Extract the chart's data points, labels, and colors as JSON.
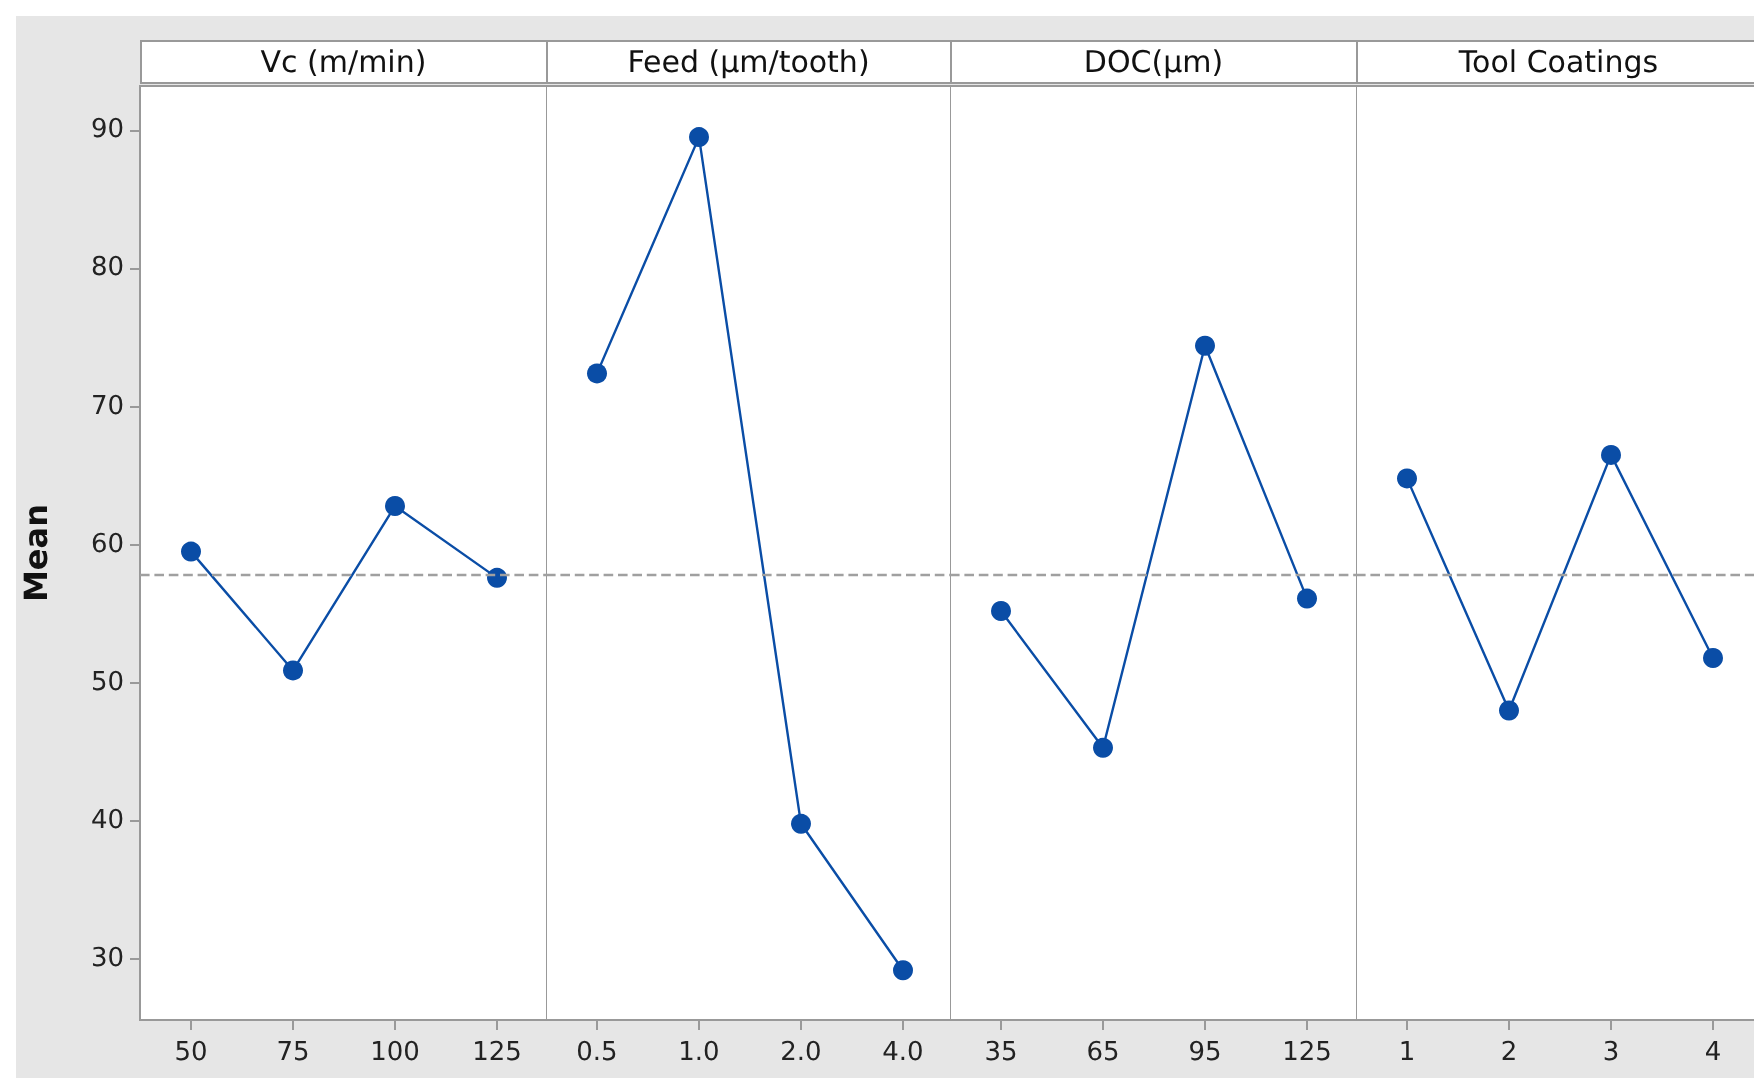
{
  "chart_data": [
    {
      "type": "line",
      "title": "Vc (m/min)",
      "ylabel": "Mean",
      "categories": [
        "50",
        "75",
        "100",
        "125"
      ],
      "values": [
        59.5,
        50.9,
        62.8,
        57.6
      ],
      "color": "#0a4da6",
      "marker": "circle",
      "ylim": [
        25.6,
        93.2
      ],
      "yticks": [
        30,
        40,
        50,
        60,
        70,
        80,
        90
      ],
      "ref_lines": [
        {
          "axis": "y",
          "value": 57.8,
          "color": "#a0a0a0",
          "line_style": "dashed"
        }
      ],
      "grid": false
    },
    {
      "type": "line",
      "title": "Feed (µm/tooth)",
      "categories": [
        "0.5",
        "1.0",
        "2.0",
        "4.0"
      ],
      "values": [
        72.4,
        89.5,
        39.8,
        29.2
      ],
      "color": "#0a4da6",
      "marker": "circle",
      "ylim": [
        25.6,
        93.2
      ],
      "yticks": [
        30,
        40,
        50,
        60,
        70,
        80,
        90
      ],
      "tick_labels": "x",
      "ref_lines": [
        {
          "axis": "y",
          "value": 57.8,
          "color": "#a0a0a0",
          "line_style": "dashed"
        }
      ],
      "grid": false
    },
    {
      "type": "line",
      "title": "DOC(µm)",
      "categories": [
        "35",
        "65",
        "95",
        "125"
      ],
      "values": [
        55.2,
        45.3,
        74.4,
        56.1
      ],
      "color": "#0a4da6",
      "marker": "circle",
      "ylim": [
        25.6,
        93.2
      ],
      "yticks": [
        30,
        40,
        50,
        60,
        70,
        80,
        90
      ],
      "tick_labels": "x",
      "ref_lines": [
        {
          "axis": "y",
          "value": 57.8,
          "color": "#a0a0a0",
          "line_style": "dashed"
        }
      ],
      "grid": false
    },
    {
      "type": "line",
      "title": "Tool Coatings",
      "categories": [
        "1",
        "2",
        "3",
        "4"
      ],
      "values": [
        64.8,
        48.0,
        66.5,
        51.8
      ],
      "color": "#0a4da6",
      "marker": "circle",
      "ylim": [
        25.6,
        93.2
      ],
      "yticks": [
        30,
        40,
        50,
        60,
        70,
        80,
        90
      ],
      "tick_labels": "x",
      "ref_lines": [
        {
          "axis": "y",
          "value": 57.8,
          "color": "#a0a0a0",
          "line_style": "dashed"
        }
      ],
      "grid": false
    }
  ]
}
